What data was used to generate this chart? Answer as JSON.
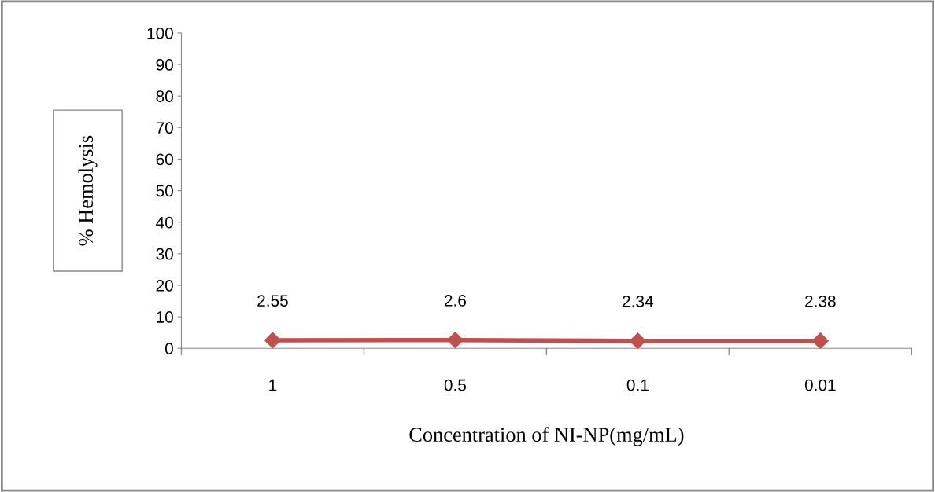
{
  "chart_data": {
    "type": "line",
    "xlabel": "Concentration of NI-NP(mg/mL)",
    "ylabel": "% Hemolysis",
    "categories": [
      "1",
      "0.5",
      "0.1",
      "0.01"
    ],
    "series": [
      {
        "color": "#c0504d",
        "values": [
          2.55,
          2.6,
          2.34,
          2.38
        ]
      }
    ],
    "ylim": [
      0,
      100
    ],
    "yticks": [
      0,
      10,
      20,
      30,
      40,
      50,
      60,
      70,
      80,
      90,
      100
    ],
    "data_labels": true,
    "marker": "diamond",
    "line_style": "solid",
    "grid": false,
    "legend": false
  }
}
